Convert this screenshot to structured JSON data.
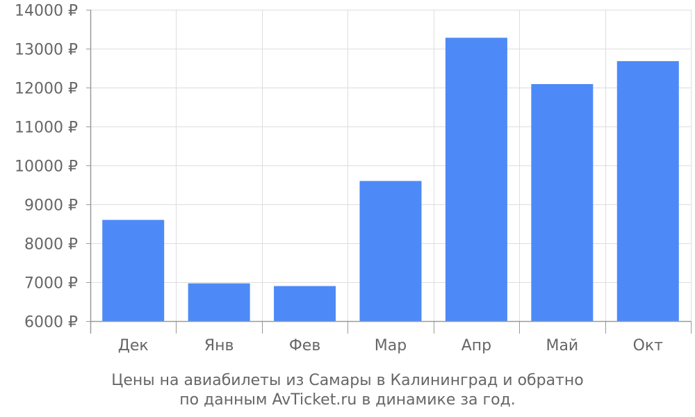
{
  "chart_data": {
    "type": "bar",
    "categories": [
      "Дек",
      "Янв",
      "Фев",
      "Мар",
      "Апр",
      "Май",
      "Окт"
    ],
    "values": [
      8600,
      6970,
      6900,
      9600,
      13280,
      12090,
      12680
    ],
    "ylim": [
      6000,
      14000
    ],
    "yticks": [
      6000,
      7000,
      8000,
      9000,
      10000,
      11000,
      12000,
      13000,
      14000
    ],
    "ytick_labels": [
      "6000 ₽",
      "7000 ₽",
      "8000 ₽",
      "9000 ₽",
      "10000 ₽",
      "11000 ₽",
      "12000 ₽",
      "13000 ₽",
      "14000 ₽"
    ],
    "grid": true,
    "bar_color": "#4d8af7",
    "caption": [
      "Цены на авиабилеты из Самары в Калининград и обратно",
      "по данным AvTicket.ru в динамике за год."
    ]
  }
}
